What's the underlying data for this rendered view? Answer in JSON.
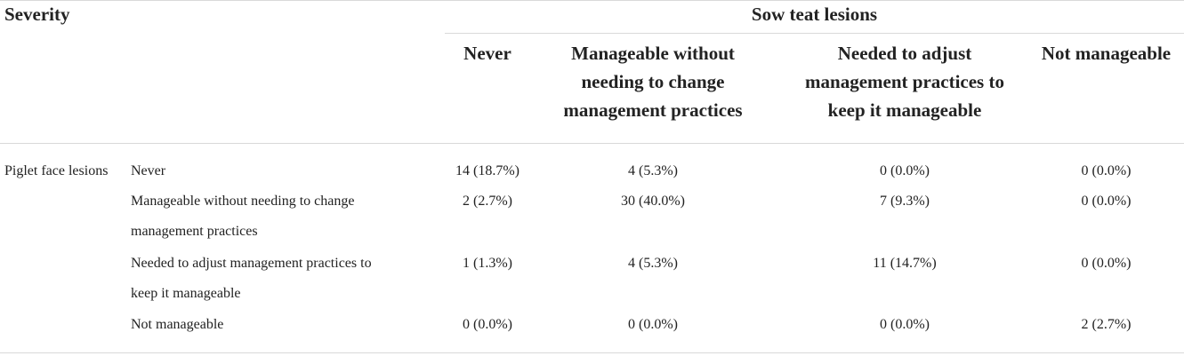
{
  "table": {
    "corner_header": "Severity",
    "group_header": "Sow teat lesions",
    "columns": [
      [
        "Never"
      ],
      [
        "Manageable without",
        "needing to change",
        "management practices"
      ],
      [
        "Needed to adjust",
        "management practices to",
        "keep it manageable"
      ],
      [
        "Not manageable"
      ]
    ],
    "row_group_label": "Piglet face lesions",
    "rows": [
      {
        "label": [
          "Never"
        ],
        "cells": [
          "14 (18.7%)",
          "4 (5.3%)",
          "0 (0.0%)",
          "0 (0.0%)"
        ]
      },
      {
        "label": [
          "Manageable without needing to change",
          "management practices"
        ],
        "cells": [
          "2 (2.7%)",
          "30 (40.0%)",
          "7 (9.3%)",
          "0 (0.0%)"
        ]
      },
      {
        "label": [
          "Needed to adjust management practices to",
          "keep it manageable"
        ],
        "cells": [
          "1 (1.3%)",
          "4 (5.3%)",
          "11 (14.7%)",
          "0 (0.0%)"
        ]
      },
      {
        "label": [
          "Not manageable"
        ],
        "cells": [
          "0 (0.0%)",
          "0 (0.0%)",
          "0 (0.0%)",
          "2 (2.7%)"
        ]
      }
    ]
  }
}
